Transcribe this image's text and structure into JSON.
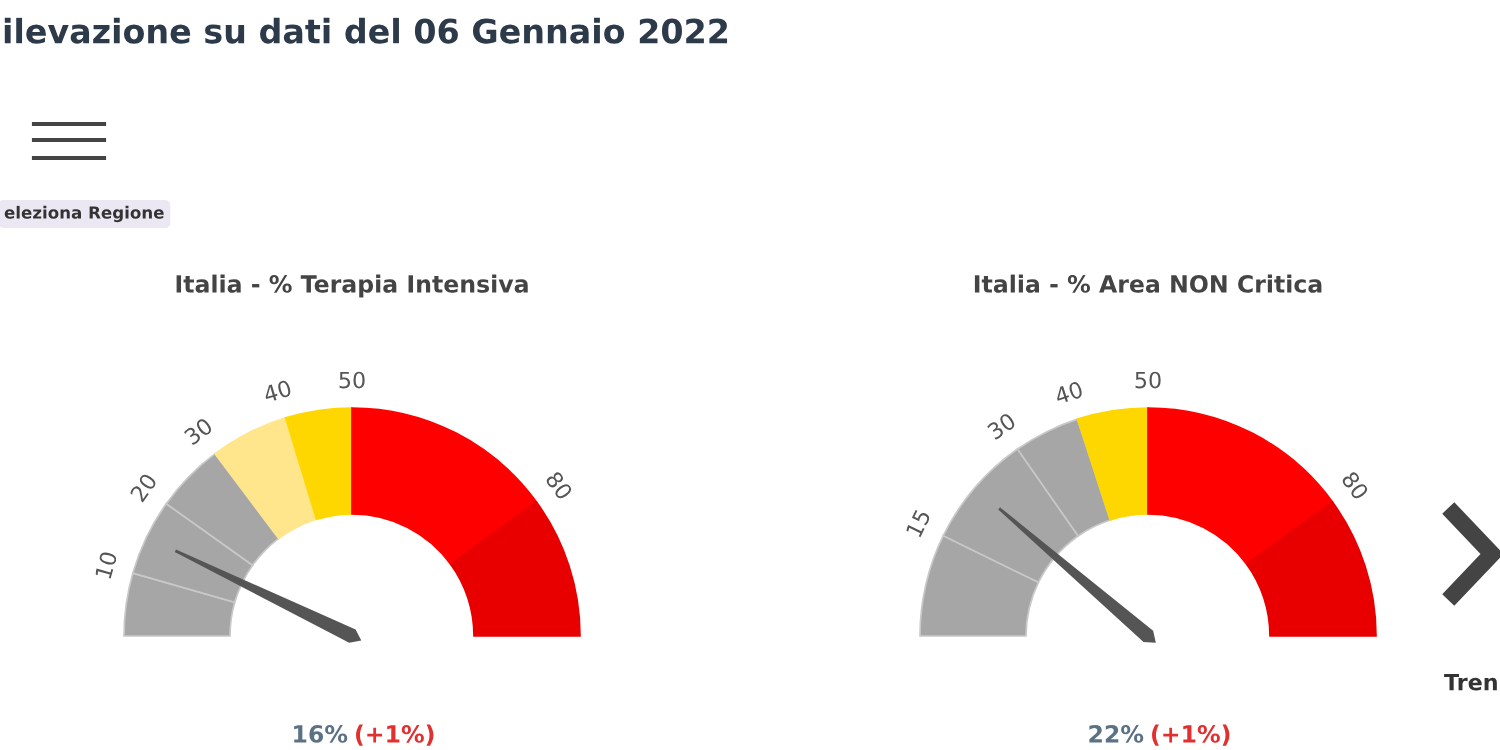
{
  "chart_data": [
    {
      "type": "donut",
      "title": "Italia - % Terapia Intensiva",
      "categories": [
        "10",
        "20",
        "30",
        "40",
        "50",
        "80",
        null
      ],
      "values": [
        8.9,
        10.8,
        9.8,
        11.1,
        9.4,
        30,
        20
      ],
      "colors": [
        "#a6a6a6",
        "#a6a6a6",
        "#a6a6a6",
        "#ffe68c",
        "#ffd700",
        "#ff0000",
        "#e80000"
      ],
      "needle": "20",
      "annotations": [
        "16%",
        "(+1%)"
      ]
    },
    {
      "type": "donut",
      "title": "Italia - % Area NON Critica",
      "categories": [
        "15",
        "30",
        "40",
        "50",
        "80",
        null
      ],
      "values": [
        14.5,
        16.1,
        9.4,
        10,
        30,
        20
      ],
      "colors": [
        "#a6a6a6",
        "#a6a6a6",
        "#a6a6a6",
        "#ffd700",
        "#ff0000",
        "#e80000"
      ],
      "needle": "30",
      "annotations": [
        "22%",
        "(+1%)"
      ]
    },
    {
      "type": "other",
      "annotations": [
        "ilevazione su dati del 06 Gennaio 2022",
        "eleziona Regione",
        "Tren"
      ]
    }
  ]
}
